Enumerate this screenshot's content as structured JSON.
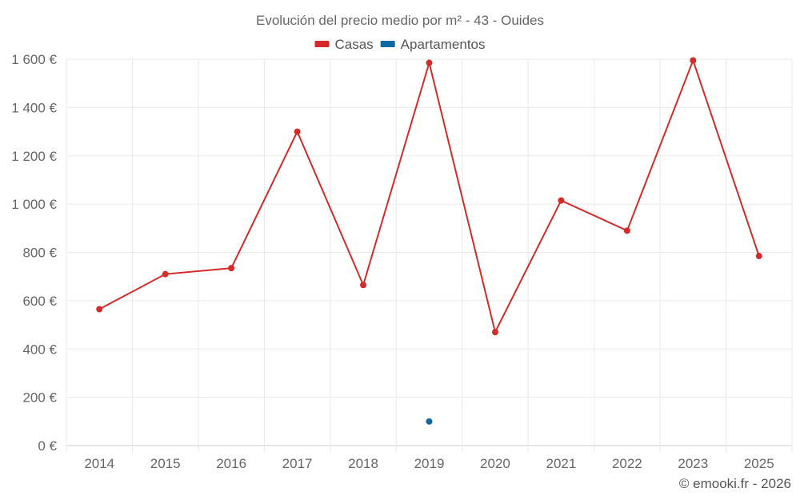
{
  "chart_data": {
    "type": "line",
    "title": "Evolución del precio medio por m² - 43 - Ouides",
    "categories": [
      "2014",
      "2015",
      "2016",
      "2017",
      "2018",
      "2019",
      "2020",
      "2021",
      "2022",
      "2023",
      "2025"
    ],
    "series": [
      {
        "name": "Casas",
        "color": "#d42a2a",
        "values": [
          565,
          710,
          735,
          1300,
          665,
          1585,
          470,
          1015,
          890,
          1595,
          785
        ]
      },
      {
        "name": "Apartamentos",
        "color": "#0c6aa3",
        "values": [
          null,
          null,
          null,
          null,
          null,
          100,
          null,
          null,
          null,
          null,
          null
        ]
      }
    ],
    "ylim": [
      0,
      1600
    ],
    "yticks": [
      0,
      200,
      400,
      600,
      800,
      1000,
      1200,
      1400,
      1600
    ],
    "ytick_labels": [
      "0 €",
      "200 €",
      "400 €",
      "600 €",
      "800 €",
      "1 000 €",
      "1 200 €",
      "1 400 €",
      "1 600 €"
    ],
    "xlabel": "",
    "ylabel": "",
    "grid": true,
    "legend": "top-center"
  },
  "credit": "© emooki.fr - 2026"
}
